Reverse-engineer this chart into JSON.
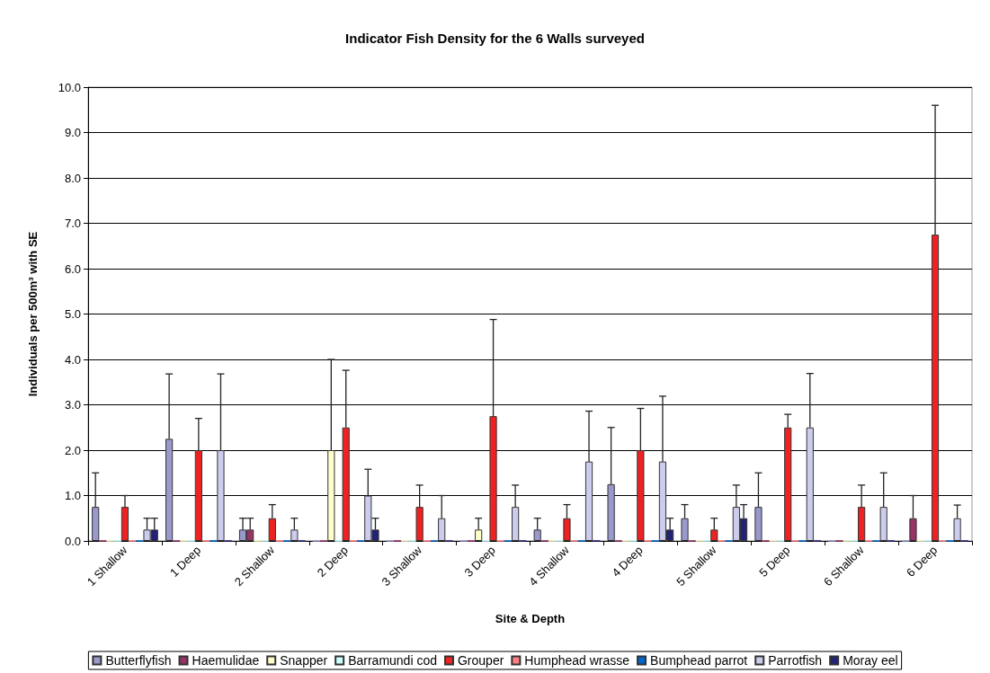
{
  "chart_data": {
    "type": "bar",
    "title": "Indicator Fish Density for the 6 Walls surveyed",
    "xlabel": "Site & Depth",
    "ylabel": "Individuals per 500m³ with SE",
    "categories": [
      "1 Shallow",
      "1 Deep",
      "2 Shallow",
      "2 Deep",
      "3 Shallow",
      "3 Deep",
      "4 Shallow",
      "4 Deep",
      "5 Shallow",
      "5 Deep",
      "6 Shallow",
      "6 Deep"
    ],
    "series": [
      {
        "name": "Butterflyfish",
        "color": "#9999cc",
        "values": [
          0.75,
          2.25,
          0.25,
          0,
          0,
          0,
          0.25,
          1.25,
          0.5,
          0.75,
          0,
          0
        ],
        "errors": [
          [
            0.75,
            1.5
          ],
          [
            2.25,
            3.68
          ],
          [
            0.25,
            0.5
          ],
          null,
          null,
          null,
          [
            0.25,
            0.5
          ],
          [
            1.25,
            2.5
          ],
          [
            0.5,
            0.8
          ],
          [
            0.75,
            1.5
          ],
          null,
          null
        ]
      },
      {
        "name": "Haemulidae",
        "color": "#993366",
        "values": [
          0,
          0,
          0.25,
          0,
          0,
          0,
          0,
          0,
          0,
          0,
          0,
          0.5
        ],
        "errors": [
          null,
          null,
          [
            0.25,
            0.5
          ],
          null,
          null,
          null,
          null,
          null,
          null,
          null,
          null,
          [
            0.5,
            1.0
          ]
        ]
      },
      {
        "name": "Snapper",
        "color": "#ffffcc",
        "values": [
          0,
          0,
          0,
          2.0,
          0,
          0.25,
          0,
          0,
          0,
          0,
          0,
          0
        ],
        "errors": [
          null,
          null,
          null,
          [
            2.0,
            4.0
          ],
          null,
          [
            0.25,
            0.5
          ],
          null,
          null,
          null,
          null,
          null,
          null
        ]
      },
      {
        "name": "Barramundi cod",
        "color": "#ccffff",
        "values": [
          0,
          0,
          0,
          0,
          0,
          0,
          0,
          0,
          0,
          0,
          0,
          0
        ]
      },
      {
        "name": "Grouper",
        "color": "#ee2222",
        "values": [
          0.75,
          2.0,
          0.5,
          2.5,
          0.75,
          2.75,
          0.5,
          2.0,
          0.25,
          2.5,
          0.75,
          6.75
        ],
        "errors": [
          [
            0.75,
            1.0
          ],
          [
            2.0,
            2.7
          ],
          [
            0.5,
            0.8
          ],
          [
            2.5,
            3.76
          ],
          [
            0.75,
            1.23
          ],
          [
            2.75,
            4.88
          ],
          [
            0.5,
            0.8
          ],
          [
            2.0,
            2.92
          ],
          [
            0.25,
            0.5
          ],
          [
            2.5,
            2.79
          ],
          [
            0.75,
            1.23
          ],
          [
            6.75,
            9.6
          ]
        ]
      },
      {
        "name": "Humphead wrasse",
        "color": "#ff8080",
        "values": [
          0,
          0,
          0,
          0,
          0,
          0,
          0,
          0,
          0,
          0,
          0,
          0
        ]
      },
      {
        "name": "Bumphead parrot",
        "color": "#0066cc",
        "values": [
          0,
          0,
          0,
          0,
          0,
          0,
          0,
          0,
          0,
          0,
          0,
          0
        ]
      },
      {
        "name": "Parrotfish",
        "color": "#ccccee",
        "values": [
          0.25,
          2.0,
          0.25,
          1.0,
          0.5,
          0.75,
          1.75,
          1.75,
          0.75,
          2.5,
          0.75,
          0.5
        ],
        "errors": [
          [
            0.25,
            0.5
          ],
          [
            2.0,
            3.68
          ],
          [
            0.25,
            0.5
          ],
          [
            1.0,
            1.58
          ],
          [
            0.5,
            1.0
          ],
          [
            0.75,
            1.23
          ],
          [
            1.75,
            2.86
          ],
          [
            1.75,
            3.19
          ],
          [
            0.75,
            1.23
          ],
          [
            2.5,
            3.69
          ],
          [
            0.75,
            1.5
          ],
          [
            0.5,
            0.79
          ]
        ]
      },
      {
        "name": "Moray eel",
        "color": "#222277",
        "values": [
          0.25,
          0,
          0,
          0.25,
          0,
          0,
          0,
          0.25,
          0.5,
          0,
          0,
          0
        ],
        "errors": [
          [
            0.25,
            0.5
          ],
          null,
          null,
          [
            0.25,
            0.5
          ],
          null,
          null,
          null,
          [
            0.25,
            0.5
          ],
          [
            0.5,
            0.8
          ],
          null,
          null,
          null
        ]
      }
    ],
    "ylim": [
      0,
      10
    ],
    "yticks": [
      {
        "value": 0,
        "label": "0.0"
      },
      {
        "value": 1,
        "label": "1.0"
      },
      {
        "value": 2,
        "label": "2.0"
      },
      {
        "value": 3,
        "label": "3.0"
      },
      {
        "value": 4,
        "label": "4.0"
      },
      {
        "value": 5,
        "label": "5.0"
      },
      {
        "value": 6,
        "label": "6.0"
      },
      {
        "value": 7,
        "label": "7.0"
      },
      {
        "value": 8,
        "label": "8.0"
      },
      {
        "value": 9,
        "label": "9.0"
      },
      {
        "value": 10,
        "label": "10.0"
      }
    ],
    "grid": "y",
    "legend": "bottom"
  }
}
